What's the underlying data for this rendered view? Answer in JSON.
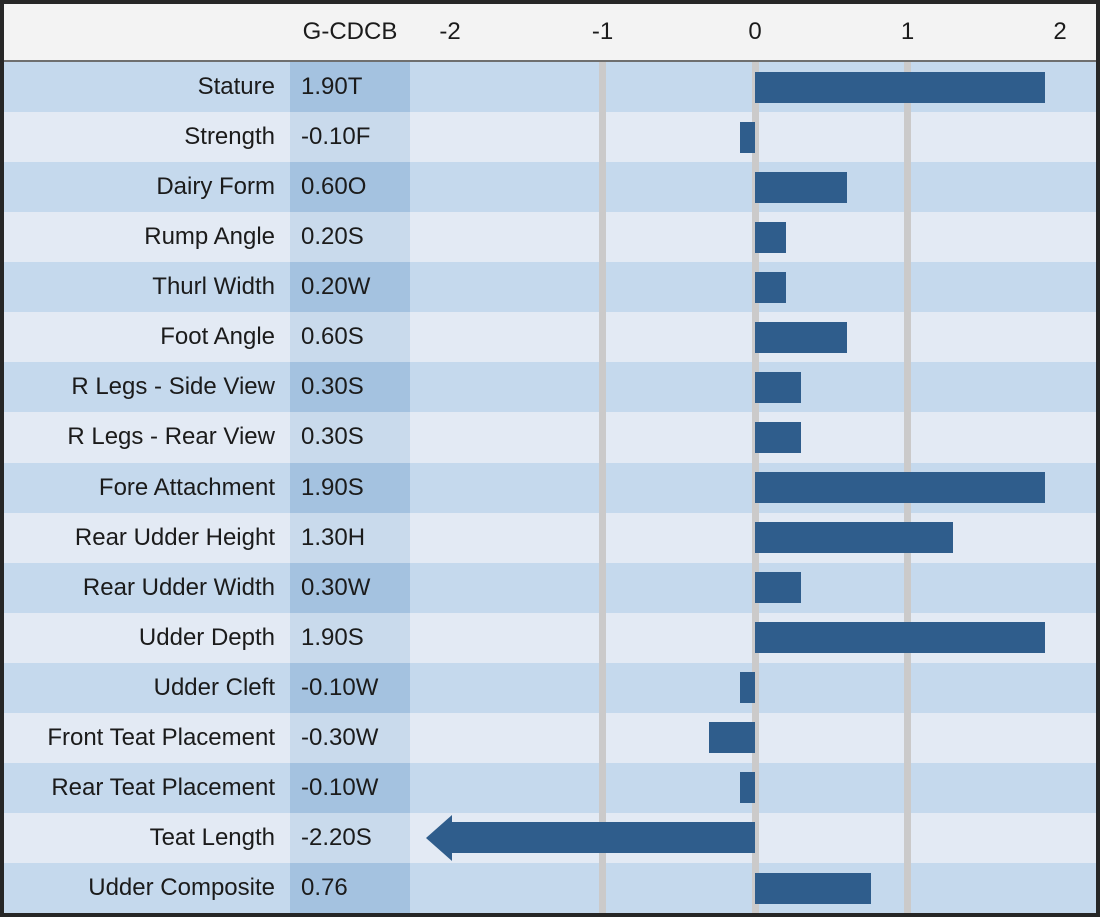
{
  "chart_data": {
    "type": "bar",
    "orientation": "horizontal",
    "title": "",
    "value_column_header": "G-CDCB",
    "categories": [
      "Stature",
      "Strength",
      "Dairy Form",
      "Rump Angle",
      "Thurl Width",
      "Foot Angle",
      "R Legs - Side View",
      "R Legs - Rear View",
      "Fore Attachment",
      "Rear Udder Height",
      "Rear Udder Width",
      "Udder Depth",
      "Udder Cleft",
      "Front Teat Placement",
      "Rear Teat Placement",
      "Teat Length",
      "Udder Composite"
    ],
    "values": [
      1.9,
      -0.1,
      0.6,
      0.2,
      0.2,
      0.6,
      0.3,
      0.3,
      1.9,
      1.3,
      0.3,
      1.9,
      -0.1,
      -0.3,
      -0.1,
      -2.2,
      0.76
    ],
    "value_labels": [
      "1.90T",
      "-0.10F",
      "0.60O",
      "0.20S",
      "0.20W",
      "0.60S",
      "0.30S",
      "0.30S",
      "1.90S",
      "1.30H",
      "0.30W",
      "1.90S",
      "-0.10W",
      "-0.30W",
      "-0.10W",
      "-2.20S",
      "0.76"
    ],
    "xlabel": "",
    "ylabel": "",
    "xlim": [
      -2,
      2
    ],
    "axis_position": "top",
    "x_tick_labels": [
      "-2",
      "-1",
      "0",
      "1",
      "2"
    ],
    "x_tick_values": [
      -2,
      -1,
      0,
      1,
      2
    ],
    "gridline_values": [
      -1,
      0,
      1
    ],
    "legend": "none",
    "off_scale_note": "Teat Length bar exceeds -2 and is drawn as a left-pointing arrow"
  },
  "colors": {
    "bar": "#2f5d8c",
    "row_band_dark": "#c5d9ed",
    "row_band_light": "#e3eaf4",
    "value_column_dark": "#a4c2e0",
    "value_column_light": "#c9daec",
    "header_background": "#f3f3f3",
    "gridline": "#cbcaca",
    "border": "#262626",
    "text": "#1b1b1b"
  }
}
